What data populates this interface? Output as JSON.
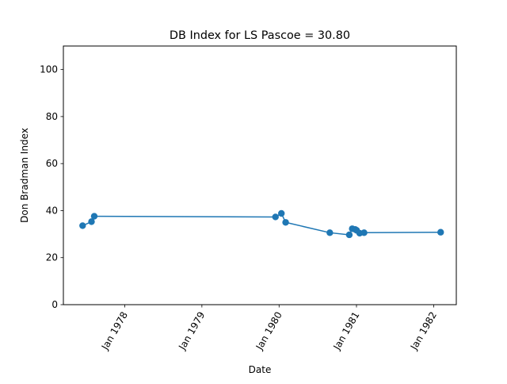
{
  "chart_data": {
    "type": "line",
    "title": "DB Index for LS Pascoe = 30.80",
    "xlabel": "Date",
    "ylabel": "Don Bradman Index",
    "ylim": [
      0,
      110
    ],
    "xlim": [
      "1977-03-17",
      "1982-04-18"
    ],
    "yticks": [
      0,
      20,
      40,
      60,
      80,
      100
    ],
    "xticks": [
      {
        "date": "1978-01-01",
        "label": "Jan 1978"
      },
      {
        "date": "1979-01-01",
        "label": "Jan 1979"
      },
      {
        "date": "1980-01-01",
        "label": "Jan 1980"
      },
      {
        "date": "1981-01-01",
        "label": "Jan 1981"
      },
      {
        "date": "1982-01-01",
        "label": "Jan 1982"
      }
    ],
    "grid": false,
    "color": "#1f77b4",
    "series": [
      {
        "points": [
          {
            "x": "1977-06-16",
            "y": 33.6
          },
          {
            "x": "1977-07-28",
            "y": 35.3
          },
          {
            "x": "1977-08-10",
            "y": 37.6
          },
          {
            "x": "1979-12-15",
            "y": 37.3
          },
          {
            "x": "1980-01-12",
            "y": 38.8
          },
          {
            "x": "1980-02-01",
            "y": 35.0
          },
          {
            "x": "1980-08-28",
            "y": 30.6
          },
          {
            "x": "1980-11-28",
            "y": 29.7
          },
          {
            "x": "1980-12-12",
            "y": 32.3
          },
          {
            "x": "1980-12-26",
            "y": 32.0
          },
          {
            "x": "1981-01-02",
            "y": 31.6
          },
          {
            "x": "1981-01-16",
            "y": 30.4
          },
          {
            "x": "1981-02-06",
            "y": 30.6
          },
          {
            "x": "1982-02-03",
            "y": 30.8
          }
        ]
      }
    ]
  }
}
